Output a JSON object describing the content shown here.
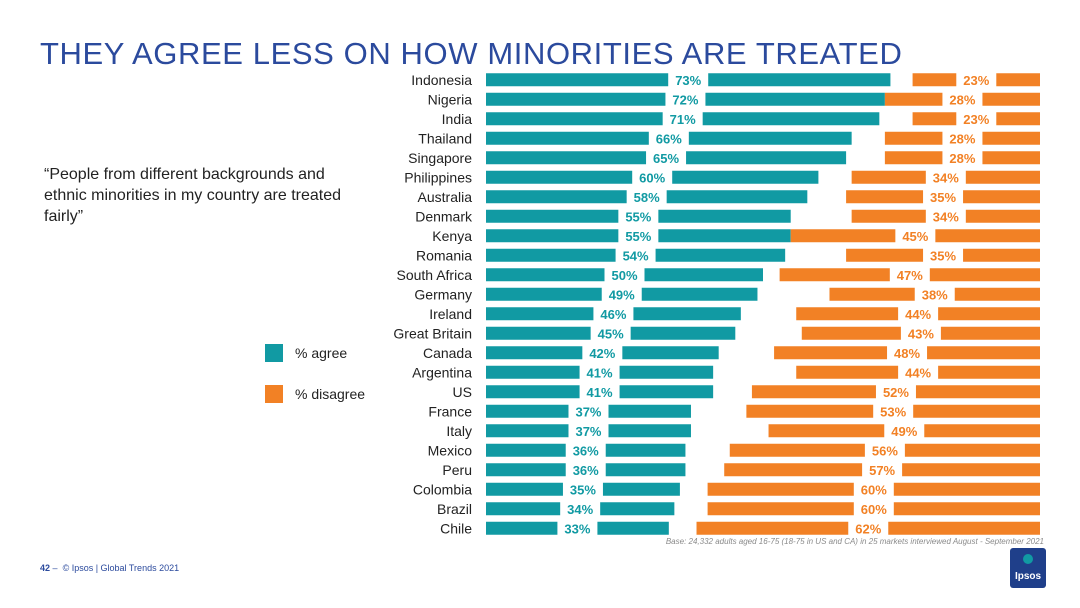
{
  "title": "THEY AGREE LESS ON HOW MINORITIES ARE TREATED",
  "quote": "“People from different backgrounds and ethnic minorities in my country are treated fairly”",
  "legend": {
    "agree": "% agree",
    "disagree": "% disagree"
  },
  "base_note": "Base: 24,332 adults aged 16-75 (18-75 in US and CA) in 25 markets interviewed August - September 2021",
  "footer": {
    "page": "42",
    "dash": "–",
    "text": "© Ipsos | Global Trends 2021"
  },
  "logo": "Ipsos",
  "colors": {
    "agree": "#119aa3",
    "disagree": "#f28125",
    "title": "#2b4a9d"
  },
  "chart_data": {
    "type": "bar",
    "orientation": "horizontal",
    "stacked_diverging": true,
    "xlim": [
      0,
      100
    ],
    "categories": [
      "Indonesia",
      "Nigeria",
      "India",
      "Thailand",
      "Singapore",
      "Philippines",
      "Australia",
      "Denmark",
      "Kenya",
      "Romania",
      "South Africa",
      "Germany",
      "Ireland",
      "Great Britain",
      "Canada",
      "Argentina",
      "US",
      "France",
      "Italy",
      "Mexico",
      "Peru",
      "Colombia",
      "Brazil",
      "Chile"
    ],
    "series": [
      {
        "name": "% agree",
        "values": [
          73,
          72,
          71,
          66,
          65,
          60,
          58,
          55,
          55,
          54,
          50,
          49,
          46,
          45,
          42,
          41,
          41,
          37,
          37,
          36,
          36,
          35,
          34,
          33
        ]
      },
      {
        "name": "% disagree",
        "values": [
          23,
          28,
          23,
          28,
          28,
          34,
          35,
          34,
          45,
          35,
          47,
          38,
          44,
          43,
          48,
          44,
          52,
          53,
          49,
          56,
          57,
          60,
          60,
          62
        ]
      }
    ]
  }
}
